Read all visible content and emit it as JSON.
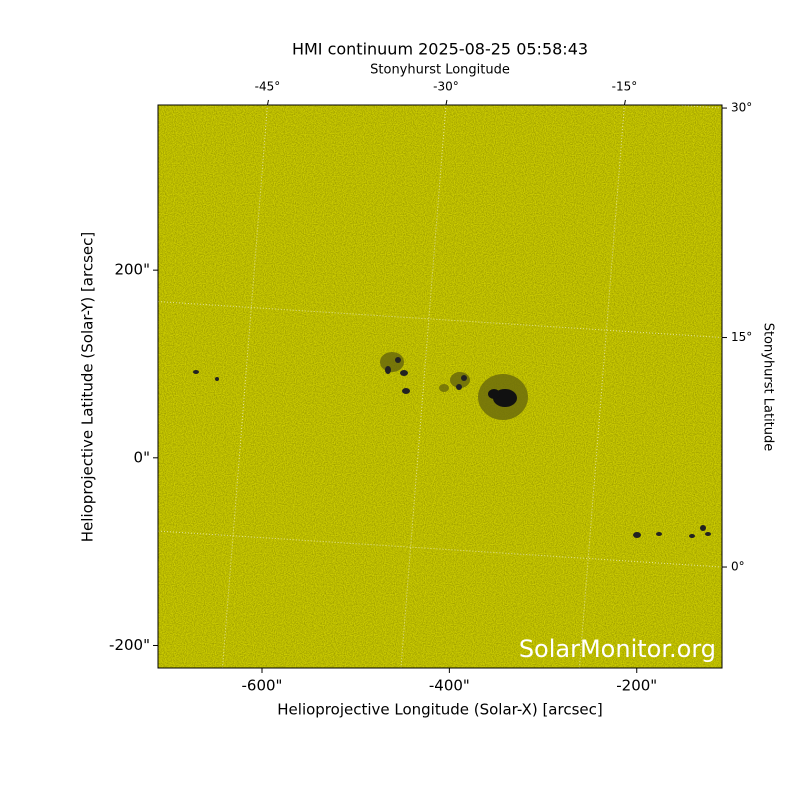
{
  "chart_data": {
    "type": "image",
    "title": "HMI continuum 2025-08-25 05:58:43",
    "xlabel": "Helioprojective Longitude (Solar-X) [arcsec]",
    "ylabel": "Helioprojective Latitude (Solar-Y) [arcsec]",
    "x2label": "Stonyhurst Longitude",
    "y2label": "Stonyhurst Latitude",
    "xlim": [
      -711,
      -109
    ],
    "ylim": [
      -224,
      376
    ],
    "xticks": [
      {
        "value": -600,
        "label": "-600\""
      },
      {
        "value": -400,
        "label": "-400\""
      },
      {
        "value": -200,
        "label": "-200\""
      }
    ],
    "yticks": [
      {
        "value": -200,
        "label": "-200\""
      },
      {
        "value": 0,
        "label": "0\""
      },
      {
        "value": 200,
        "label": "200\""
      }
    ],
    "x2lim": [
      -54.2,
      -6.8
    ],
    "x2ticks": [
      {
        "value": -45,
        "label": "-45°"
      },
      {
        "value": -30,
        "label": "-30°"
      },
      {
        "value": -15,
        "label": "-15°"
      }
    ],
    "y2lim": [
      -6.6,
      30.2
    ],
    "y2ticks": [
      {
        "value": 0,
        "label": "0°"
      },
      {
        "value": 15,
        "label": "15°"
      },
      {
        "value": 30,
        "label": "30°"
      }
    ],
    "color": "#cccc00",
    "grid": true,
    "watermark": "SolarMonitor.org"
  }
}
